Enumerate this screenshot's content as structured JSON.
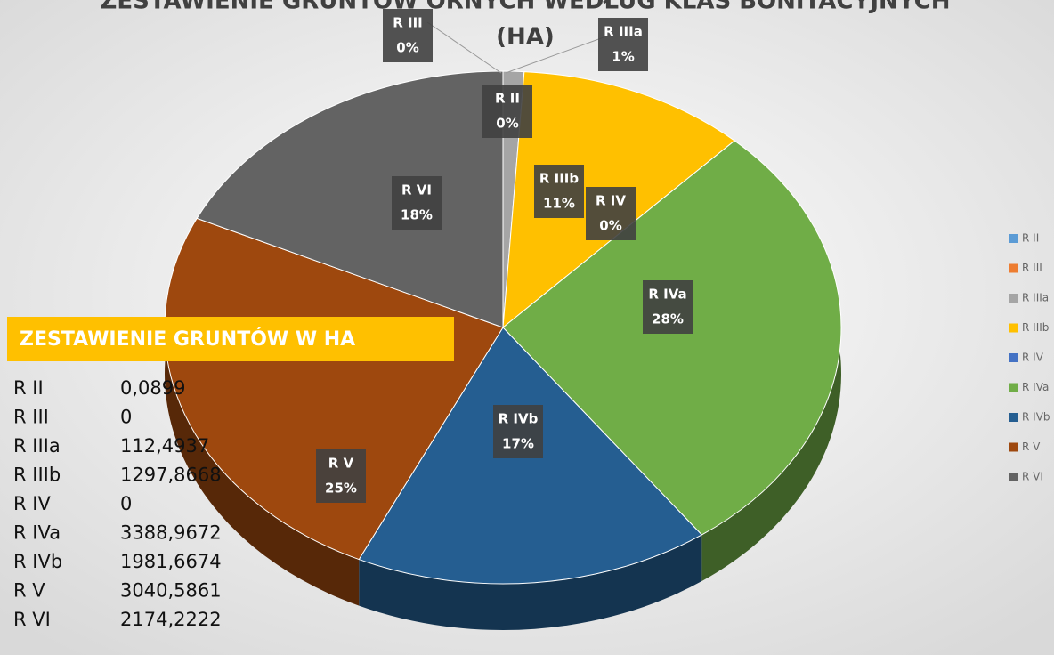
{
  "chart_data": {
    "type": "pie",
    "title": "ZESTAWIENIE GRUNTÓW ORNYCH WEDŁUG KLAS BONITACYJNYCH",
    "subtitle": "(HA)",
    "categories": [
      "R II",
      "R III",
      "R IIIa",
      "R IIIb",
      "R IV",
      "R IVa",
      "R IVb",
      "R V",
      "R VI"
    ],
    "values": [
      0,
      0,
      1,
      11,
      0,
      28,
      17,
      25,
      18
    ],
    "value_labels": [
      "0%",
      "0%",
      "1%",
      "11%",
      "0%",
      "28%",
      "17%",
      "25%",
      "18%"
    ],
    "colors": [
      "#5b9bd5",
      "#ed7d31",
      "#a5a5a5",
      "#ffc000",
      "#4472c4",
      "#70ad47",
      "#255e91",
      "#9e480e",
      "#636363"
    ],
    "legend": "right"
  },
  "table": {
    "title": "ZESTAWIENIE GRUNTÓW W HA",
    "rows": [
      [
        "R II",
        "0,0899"
      ],
      [
        "R III",
        "0"
      ],
      [
        "R IIIa",
        "112,4937"
      ],
      [
        "R IIIb",
        "1297,8668"
      ],
      [
        "R IV",
        "0"
      ],
      [
        "R IVa",
        "3388,9672"
      ],
      [
        "R IVb",
        "1981,6674"
      ],
      [
        "R V",
        "3040,5861"
      ],
      [
        "R VI",
        "2174,2222"
      ]
    ]
  }
}
